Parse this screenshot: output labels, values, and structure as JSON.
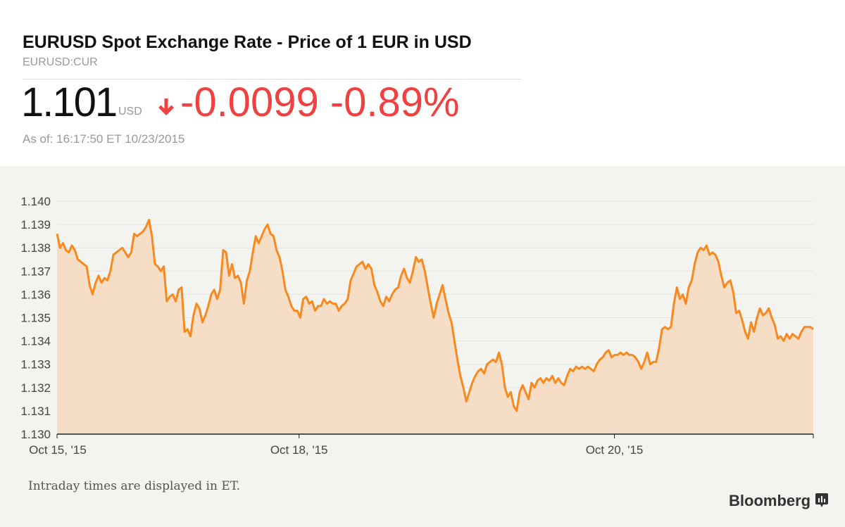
{
  "header": {
    "title": "EURUSD Spot Exchange Rate - Price of 1 EUR in USD",
    "ticker": "EURUSD:CUR",
    "price": "1.101",
    "currency": "USD",
    "change": "-0.0099 -0.89%",
    "as_of": "As of: 16:17:50 ET 10/23/2015"
  },
  "colors": {
    "line": "#f7891f",
    "fill": "#f5dec5",
    "negative": "#f04040"
  },
  "footer": {
    "note": "Intraday times are displayed in ET.",
    "brand": "Bloomberg"
  },
  "chart_data": {
    "type": "area",
    "title": "",
    "xlabel": "",
    "ylabel": "",
    "ylim": [
      1.13,
      1.14
    ],
    "yticks": [
      "1.140",
      "1.139",
      "1.138",
      "1.137",
      "1.136",
      "1.135",
      "1.134",
      "1.133",
      "1.132",
      "1.131",
      "1.130"
    ],
    "xticks": [
      {
        "label": "Oct 15, '15",
        "frac": 0
      },
      {
        "label": "Oct 18, '15",
        "frac": 0.32
      },
      {
        "label": "Oct 20, '15",
        "frac": 0.737
      }
    ],
    "values": [
      1.1386,
      1.138,
      1.1382,
      1.1379,
      1.1378,
      1.1381,
      1.1379,
      1.1375,
      1.1374,
      1.1373,
      1.1372,
      1.1364,
      1.136,
      1.1365,
      1.1368,
      1.1365,
      1.1367,
      1.1366,
      1.137,
      1.1377,
      1.1378,
      1.1379,
      1.138,
      1.1378,
      1.1376,
      1.1378,
      1.1386,
      1.1385,
      1.1386,
      1.1387,
      1.1389,
      1.1392,
      1.1385,
      1.1373,
      1.1372,
      1.137,
      1.1372,
      1.1357,
      1.1359,
      1.136,
      1.1357,
      1.1362,
      1.1363,
      1.1344,
      1.1345,
      1.1342,
      1.1351,
      1.1356,
      1.1354,
      1.1348,
      1.1351,
      1.1355,
      1.136,
      1.1362,
      1.1358,
      1.1362,
      1.1379,
      1.1378,
      1.1368,
      1.1373,
      1.1367,
      1.1368,
      1.1365,
      1.1356,
      1.1366,
      1.137,
      1.1378,
      1.1385,
      1.1382,
      1.1385,
      1.1388,
      1.139,
      1.1386,
      1.1385,
      1.1379,
      1.1376,
      1.137,
      1.1362,
      1.1359,
      1.1355,
      1.1353,
      1.1353,
      1.135,
      1.1358,
      1.1359,
      1.1356,
      1.1357,
      1.1353,
      1.1355,
      1.1355,
      1.1358,
      1.1356,
      1.1357,
      1.1356,
      1.1356,
      1.1353,
      1.1355,
      1.1356,
      1.1358,
      1.1366,
      1.1369,
      1.1372,
      1.1373,
      1.1374,
      1.1371,
      1.1373,
      1.1371,
      1.1364,
      1.1361,
      1.1357,
      1.1355,
      1.1359,
      1.1357,
      1.136,
      1.1362,
      1.1363,
      1.1368,
      1.1371,
      1.1367,
      1.1365,
      1.137,
      1.1376,
      1.1374,
      1.1375,
      1.137,
      1.1363,
      1.1356,
      1.135,
      1.1356,
      1.136,
      1.1364,
      1.1358,
      1.1352,
      1.1348,
      1.134,
      1.1332,
      1.1325,
      1.132,
      1.1314,
      1.1318,
      1.1322,
      1.1325,
      1.1327,
      1.1328,
      1.1326,
      1.133,
      1.1331,
      1.1332,
      1.1331,
      1.1335,
      1.133,
      1.132,
      1.1316,
      1.1318,
      1.1312,
      1.131,
      1.1318,
      1.1321,
      1.1318,
      1.1315,
      1.1322,
      1.132,
      1.1323,
      1.1324,
      1.1322,
      1.1324,
      1.1323,
      1.1325,
      1.1322,
      1.1324,
      1.1322,
      1.1321,
      1.1325,
      1.1328,
      1.1327,
      1.1329,
      1.1328,
      1.1329,
      1.1328,
      1.1329,
      1.1328,
      1.1327,
      1.133,
      1.1332,
      1.1333,
      1.1335,
      1.1336,
      1.1333,
      1.1334,
      1.1334,
      1.1335,
      1.1334,
      1.1335,
      1.1334,
      1.1334,
      1.1333,
      1.1331,
      1.1328,
      1.1331,
      1.1335,
      1.133,
      1.1331,
      1.1331,
      1.1337,
      1.1345,
      1.1346,
      1.1345,
      1.1346,
      1.1356,
      1.1363,
      1.1358,
      1.136,
      1.1356,
      1.1363,
      1.1366,
      1.1373,
      1.1378,
      1.138,
      1.1379,
      1.1381,
      1.1377,
      1.1378,
      1.1377,
      1.1374,
      1.1368,
      1.1363,
      1.1365,
      1.1366,
      1.1361,
      1.1352,
      1.1353,
      1.1349,
      1.1344,
      1.1341,
      1.1348,
      1.1344,
      1.135,
      1.1354,
      1.1351,
      1.1352,
      1.1354,
      1.135,
      1.1347,
      1.1341,
      1.1342,
      1.134,
      1.1343,
      1.1341,
      1.1343,
      1.1342,
      1.1341,
      1.1344,
      1.1346,
      1.1346,
      1.1346,
      1.1345
    ]
  }
}
